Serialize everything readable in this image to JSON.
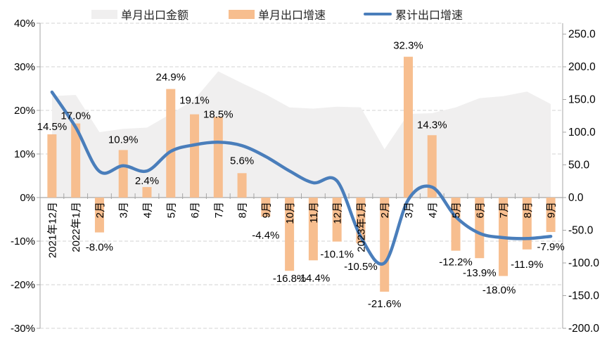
{
  "legend": {
    "items": [
      {
        "label": "单月出口金额",
        "swatch": "area",
        "color": "#F0EFEF"
      },
      {
        "label": "单月出口增速",
        "swatch": "bar",
        "color": "#F7BE8F"
      },
      {
        "label": "累计出口增速",
        "swatch": "line",
        "color": "#4A7EBB"
      }
    ]
  },
  "chart_data": {
    "type": "combo",
    "title": "",
    "legend_position": "top",
    "grid": {
      "horizontal": "dashed"
    },
    "categories": [
      "2021年12月",
      "2022年1月",
      "2月",
      "3月",
      "4月",
      "5月",
      "6月",
      "7月",
      "8月",
      "9月",
      "10月",
      "11月",
      "12月",
      "2023年1月",
      "2月",
      "3月",
      "4月",
      "5月",
      "6月",
      "7月",
      "8月",
      "9月"
    ],
    "series": [
      {
        "name": "单月出口金额",
        "type": "area",
        "axis": "right",
        "color": "#F0EFEF",
        "values": [
          155,
          157,
          100,
          105,
          107,
          128,
          150,
          193,
          175,
          158,
          138,
          136,
          139,
          138,
          74,
          128,
          129,
          138,
          152,
          155,
          162,
          143
        ]
      },
      {
        "name": "单月出口增速",
        "type": "bar",
        "axis": "left",
        "color": "#F7BE8F",
        "values": [
          14.5,
          17.0,
          -8.0,
          10.9,
          2.4,
          24.9,
          19.1,
          18.5,
          5.6,
          -4.4,
          -16.8,
          -14.4,
          -10.1,
          -10.5,
          -21.6,
          32.3,
          14.3,
          -12.2,
          -13.9,
          -18.0,
          -11.9,
          -7.9
        ],
        "labels": [
          "14.5%",
          "17.0%",
          "-8.0%",
          "10.9%",
          "2.4%",
          "24.9%",
          "19.1%",
          "18.5%",
          "5.6%",
          "-4.4%",
          "-16.8%",
          "-14.4%",
          "-10.1%",
          "-10.5%",
          "-21.6%",
          "32.3%",
          "14.3%",
          "-12.2%",
          "-13.9%",
          "-18.0%",
          "-11.9%",
          "-7.9%"
        ]
      },
      {
        "name": "累计出口增速",
        "type": "line",
        "axis": "left",
        "color": "#4A7EBB",
        "smooth": true,
        "values": [
          24.2,
          16.1,
          6.0,
          7.3,
          6.1,
          10.6,
          12.1,
          12.7,
          11.9,
          9.4,
          6.1,
          3.4,
          3.8,
          -9.0,
          -15.0,
          -0.5,
          2.4,
          -4.4,
          -8.2,
          -9.2,
          -9.4,
          -8.9
        ]
      }
    ],
    "left_axis": {
      "min": -30,
      "max": 40,
      "ticks": [
        "40%",
        "30%",
        "20%",
        "10%",
        "0%",
        "-10%",
        "-20%",
        "-30%"
      ],
      "tick_values": [
        40,
        30,
        20,
        10,
        0,
        -10,
        -20,
        -30
      ]
    },
    "right_axis": {
      "min": -200,
      "max": 266,
      "ticks": [
        "250.0",
        "200.0",
        "150.0",
        "100.0",
        "50.0",
        "0.0",
        "-50.0",
        "-100.0",
        "-150.0",
        "-200.0"
      ],
      "tick_values": [
        250,
        200,
        150,
        100,
        50,
        0,
        -50,
        -100,
        -150,
        -200
      ]
    },
    "colors": {
      "grid": "#D3D3D3",
      "axis": "#A6A6A6",
      "text": "#000000"
    }
  }
}
